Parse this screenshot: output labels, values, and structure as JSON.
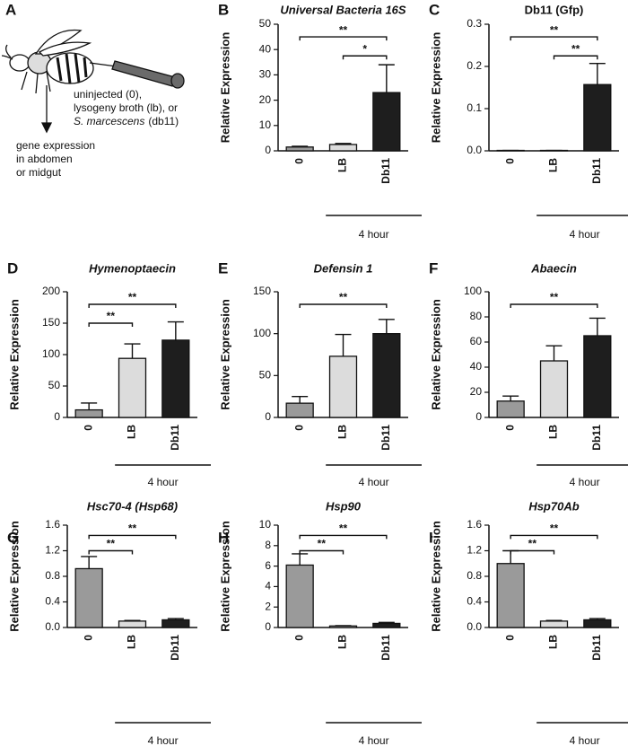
{
  "panel_a": {
    "label": "A",
    "treatment_lines": [
      "uninjected (0),",
      "lysogeny broth (lb), or"
    ],
    "species": "S. marcescens",
    "species_rest": "(db11)",
    "outcome_lines": [
      "gene expression",
      "in abdomen",
      "or midgut"
    ]
  },
  "chart_data": [
    {
      "type": "bar",
      "panel": "B",
      "title": "Universal Bacteria 16S",
      "title_style": "italic",
      "y_label": "Relative Expression",
      "categories": [
        "0",
        "LB",
        "Db11"
      ],
      "values": [
        1.5,
        2.5,
        23
      ],
      "errors": [
        0.3,
        0.4,
        11
      ],
      "colors": [
        "#9a9a9a",
        "#dcdcdc",
        "#1e1e1e"
      ],
      "ylim": [
        0,
        50
      ],
      "yticks": [
        0,
        10,
        20,
        30,
        40,
        50
      ],
      "brackets": [
        {
          "from": 0,
          "to": 2,
          "label": "**"
        },
        {
          "from": 1,
          "to": 2,
          "label": "*"
        }
      ],
      "group_label": "4 hour"
    },
    {
      "type": "bar",
      "panel": "C",
      "title": "Db11 (Gfp)",
      "title_style": "normal",
      "y_label": "Relative Expression",
      "categories": [
        "0",
        "LB",
        "Db11"
      ],
      "values": [
        0.001,
        0.001,
        0.157
      ],
      "errors": [
        0,
        0,
        0.05
      ],
      "colors": [
        "#9a9a9a",
        "#dcdcdc",
        "#1e1e1e"
      ],
      "ylim": [
        0,
        0.3
      ],
      "yticks": [
        {
          "value": 0,
          "label": "0.0"
        },
        0.1,
        0.2,
        0.3
      ],
      "brackets": [
        {
          "from": 0,
          "to": 2,
          "label": "**"
        },
        {
          "from": 1,
          "to": 2,
          "label": "**"
        }
      ],
      "group_label": "4 hour"
    },
    {
      "type": "bar",
      "panel": "D",
      "title": "Hymenoptaecin",
      "title_style": "italic",
      "y_label": "Relative Expression",
      "categories": [
        "0",
        "LB",
        "Db11"
      ],
      "values": [
        12,
        94,
        123
      ],
      "errors": [
        11,
        23,
        29
      ],
      "colors": [
        "#9a9a9a",
        "#dcdcdc",
        "#1e1e1e"
      ],
      "ylim": [
        0,
        200
      ],
      "yticks": [
        0,
        50,
        100,
        150,
        200
      ],
      "brackets": [
        {
          "from": 0,
          "to": 2,
          "label": "**"
        },
        {
          "from": 0,
          "to": 1,
          "label": "**"
        }
      ],
      "group_label": "4 hour"
    },
    {
      "type": "bar",
      "panel": "E",
      "title": "Defensin 1",
      "title_style": "italic",
      "y_label": "Relative Expression",
      "categories": [
        "0",
        "LB",
        "Db11"
      ],
      "values": [
        17,
        73,
        100
      ],
      "errors": [
        8,
        26,
        17
      ],
      "colors": [
        "#9a9a9a",
        "#dcdcdc",
        "#1e1e1e"
      ],
      "ylim": [
        0,
        150
      ],
      "yticks": [
        0,
        50,
        100,
        150
      ],
      "brackets": [
        {
          "from": 0,
          "to": 2,
          "label": "**"
        }
      ],
      "group_label": "4 hour"
    },
    {
      "type": "bar",
      "panel": "F",
      "title": "Abaecin",
      "title_style": "italic",
      "y_label": "Relative Expression",
      "categories": [
        "0",
        "LB",
        "Db11"
      ],
      "values": [
        13,
        45,
        65
      ],
      "errors": [
        4,
        12,
        14
      ],
      "colors": [
        "#9a9a9a",
        "#dcdcdc",
        "#1e1e1e"
      ],
      "ylim": [
        0,
        100
      ],
      "yticks": [
        0,
        20,
        40,
        60,
        80,
        100
      ],
      "brackets": [
        {
          "from": 0,
          "to": 2,
          "label": "**"
        }
      ],
      "group_label": "4 hour"
    },
    {
      "type": "bar",
      "panel": "G",
      "title": "Hsc70-4 (Hsp68)",
      "title_style": "italic",
      "y_label": "Relative Expression",
      "categories": [
        "0",
        "LB",
        "Db11"
      ],
      "values": [
        0.92,
        0.1,
        0.12
      ],
      "errors": [
        0.19,
        0.01,
        0.02
      ],
      "colors": [
        "#9a9a9a",
        "#dcdcdc",
        "#1e1e1e"
      ],
      "ylim": [
        0,
        1.6
      ],
      "yticks": [
        {
          "value": 0,
          "label": "0.0"
        },
        0.4,
        0.8,
        1.2,
        1.6
      ],
      "brackets": [
        {
          "from": 0,
          "to": 2,
          "label": "**"
        },
        {
          "from": 0,
          "to": 1,
          "label": "**"
        }
      ],
      "group_label": "4 hour"
    },
    {
      "type": "bar",
      "panel": "H",
      "title": "Hsp90",
      "title_style": "italic",
      "y_label": "Relative Expression",
      "categories": [
        "0",
        "LB",
        "Db11"
      ],
      "values": [
        6.1,
        0.15,
        0.4
      ],
      "errors": [
        1.1,
        0.03,
        0.1
      ],
      "colors": [
        "#9a9a9a",
        "#dcdcdc",
        "#1e1e1e"
      ],
      "ylim": [
        0,
        10
      ],
      "yticks": [
        0,
        2,
        4,
        6,
        8,
        10
      ],
      "brackets": [
        {
          "from": 0,
          "to": 2,
          "label": "**"
        },
        {
          "from": 0,
          "to": 1,
          "label": "**"
        }
      ],
      "group_label": "4 hour"
    },
    {
      "type": "bar",
      "panel": "I",
      "title": "Hsp70Ab",
      "title_style": "italic",
      "y_label": "Relative Expression",
      "categories": [
        "0",
        "LB",
        "Db11"
      ],
      "values": [
        1.0,
        0.1,
        0.12
      ],
      "errors": [
        0.2,
        0.01,
        0.02
      ],
      "colors": [
        "#9a9a9a",
        "#dcdcdc",
        "#1e1e1e"
      ],
      "ylim": [
        0,
        1.6
      ],
      "yticks": [
        {
          "value": 0,
          "label": "0.0"
        },
        0.4,
        0.8,
        1.2,
        1.6
      ],
      "brackets": [
        {
          "from": 0,
          "to": 2,
          "label": "**"
        },
        {
          "from": 0,
          "to": 1,
          "label": "**"
        }
      ],
      "group_label": "4 hour"
    }
  ]
}
